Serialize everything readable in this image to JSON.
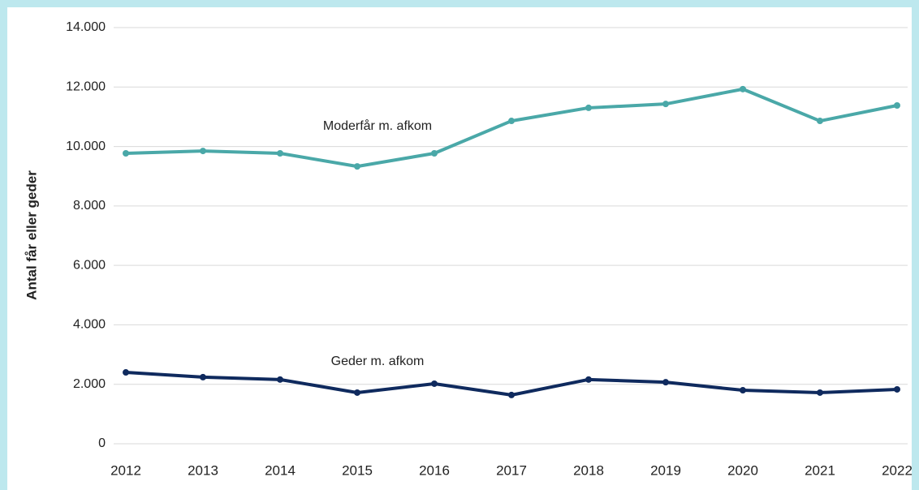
{
  "chart_data": {
    "type": "line",
    "y_label": "Antal får eller geder",
    "categories": [
      "2012",
      "2013",
      "2014",
      "2015",
      "2016",
      "2017",
      "2018",
      "2019",
      "2020",
      "2021",
      "2022"
    ],
    "series": [
      {
        "name": "Moderfår m. afkom",
        "color": "#4aa8a8",
        "values": [
          9770,
          9850,
          9770,
          9330,
          9770,
          10860,
          11300,
          11430,
          11930,
          10860,
          11380
        ]
      },
      {
        "name": "Geder m. afkom",
        "color": "#0f2a5e",
        "values": [
          2400,
          2240,
          2160,
          1720,
          2020,
          1640,
          2160,
          2070,
          1800,
          1720,
          1830
        ]
      }
    ],
    "ylim": [
      0,
      14000
    ],
    "yticks": [
      0,
      {
        "value": 2000,
        "label": "2.000"
      },
      {
        "value": 4000,
        "label": "4.000"
      },
      {
        "value": 6000,
        "label": "6.000"
      },
      {
        "value": 8000,
        "label": "8.000"
      },
      {
        "value": 10000,
        "label": "10.000"
      },
      {
        "value": 12000,
        "label": "12.000"
      },
      {
        "value": 14000,
        "label": "14.000"
      }
    ],
    "grid": true
  }
}
